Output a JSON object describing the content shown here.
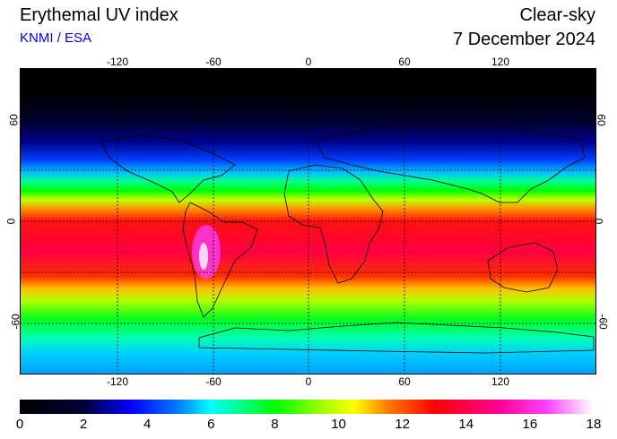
{
  "header": {
    "title": "Erythemal UV index",
    "credit": "KNMI / ESA",
    "product": "Clear-sky",
    "date": "7 December 2024"
  },
  "colors": {
    "credit_color": "#0000ee",
    "ocean_shading": "latitude-band UV gradient"
  },
  "map": {
    "lon_ticks": [
      "-120",
      "-60",
      "0",
      "60",
      "120"
    ],
    "lat_ticks_left": [
      "60",
      "0",
      "-60"
    ],
    "lat_ticks_right": [
      "60",
      "0",
      "-60"
    ],
    "lon_range": [
      -180,
      180
    ],
    "lat_range": [
      -90,
      90
    ],
    "gridlines": "dotted every 30 degrees"
  },
  "colorbar": {
    "labels": [
      "0",
      "2",
      "4",
      "6",
      "8",
      "10",
      "12",
      "14",
      "16",
      "18"
    ],
    "range": [
      0,
      18
    ],
    "stops": [
      {
        "v": 0,
        "c": "#000000"
      },
      {
        "v": 2,
        "c": "#00003a"
      },
      {
        "v": 3.5,
        "c": "#0000ff"
      },
      {
        "v": 5,
        "c": "#0080ff"
      },
      {
        "v": 6,
        "c": "#00ffff"
      },
      {
        "v": 7,
        "c": "#00ff80"
      },
      {
        "v": 8,
        "c": "#00ff00"
      },
      {
        "v": 9.5,
        "c": "#a0ff00"
      },
      {
        "v": 10.5,
        "c": "#ffff00"
      },
      {
        "v": 11.5,
        "c": "#ff8000"
      },
      {
        "v": 13,
        "c": "#ff0000"
      },
      {
        "v": 15,
        "c": "#ff0090"
      },
      {
        "v": 16.5,
        "c": "#ff40ff"
      },
      {
        "v": 18,
        "c": "#ffffff"
      }
    ]
  }
}
